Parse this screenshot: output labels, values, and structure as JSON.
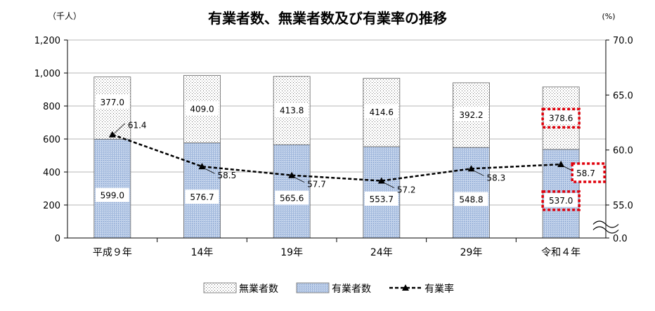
{
  "chart_data": {
    "type": "bar",
    "title": "有業者数、無業者数及び有業率の推移",
    "left_axis_unit": "（千人）",
    "right_axis_unit": "(%)",
    "categories": [
      "平成９年",
      "14年",
      "19年",
      "24年",
      "29年",
      "令和４年"
    ],
    "left_axis": {
      "ylim": [
        0,
        1200
      ],
      "ticks": [
        "0",
        "200",
        "400",
        "600",
        "800",
        "1,000",
        "1,200"
      ]
    },
    "right_axis": {
      "ticks": [
        "0.0",
        "55.0",
        "60.0",
        "65.0",
        "70.0"
      ],
      "broken": true,
      "break_range": [
        0,
        50
      ]
    },
    "series": [
      {
        "name": "有業者数",
        "values": [
          599.0,
          576.7,
          565.6,
          553.7,
          548.8,
          537.0
        ],
        "labels": [
          "599.0",
          "576.7",
          "565.6",
          "553.7",
          "548.8",
          "537.0"
        ],
        "color": "#a9bfe0"
      },
      {
        "name": "無業者数",
        "values": [
          377.0,
          409.0,
          413.8,
          414.6,
          392.2,
          378.6
        ],
        "labels": [
          "377.0",
          "409.0",
          "413.8",
          "414.6",
          "392.2",
          "378.6"
        ],
        "color": "#ffffff"
      },
      {
        "name": "有業率",
        "values": [
          61.4,
          58.5,
          57.7,
          57.2,
          58.3,
          58.7
        ],
        "labels": [
          "61.4",
          "58.5",
          "57.7",
          "57.2",
          "58.3",
          "58.7"
        ],
        "color": "#000000"
      }
    ],
    "highlight_color": "#e0000b",
    "legend": {
      "placement": "bottom",
      "items": [
        "無業者数",
        "有業者数",
        "有業率"
      ]
    }
  }
}
